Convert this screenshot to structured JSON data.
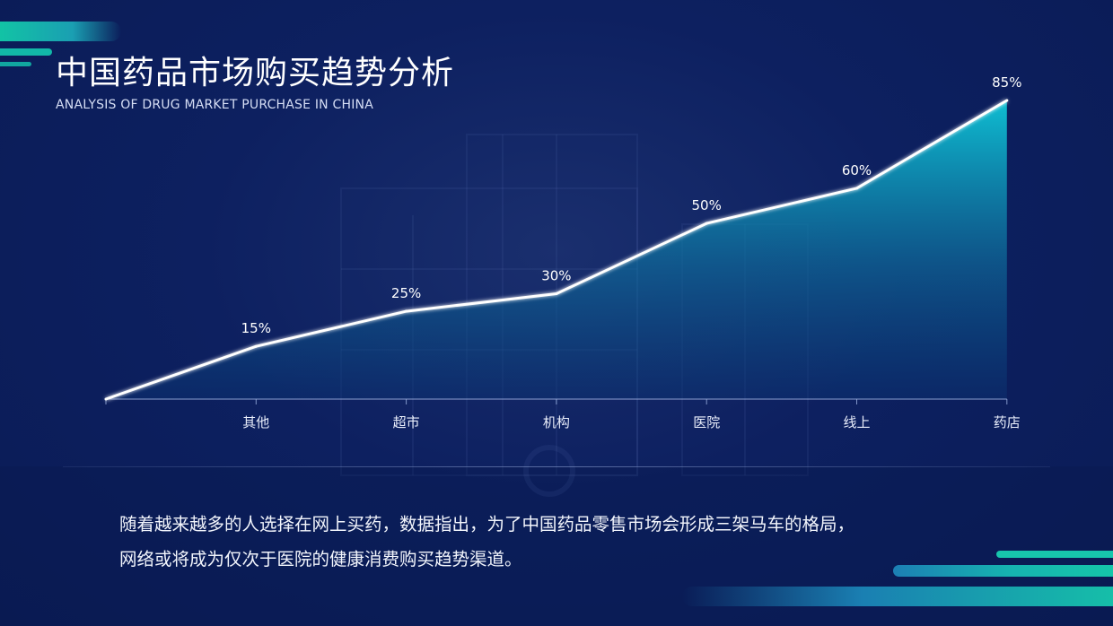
{
  "header": {
    "title": "中国药品市场购买趋势分析",
    "subtitle": "ANALYSIS OF DRUG MARKET PURCHASE IN CHINA"
  },
  "description": {
    "line1": "随着越来越多的人选择在网上买药，数据指出，为了中国药品零售市场会形成三架马车的格局，",
    "line2": "网络或将成为仅次于医院的健康消费购买趋势渠道。"
  },
  "colors": {
    "background": "#0a1b55",
    "accent_teal": "#12c3a5",
    "area_top": "#0fc6d8",
    "area_bottom": "#0b3372",
    "line": "#ffffff"
  },
  "chart_data": {
    "type": "area",
    "title": "",
    "xlabel": "",
    "ylabel": "",
    "categories": [
      "",
      "其他",
      "超市",
      "机构",
      "医院",
      "线上",
      "药店"
    ],
    "values": [
      0,
      15,
      25,
      30,
      50,
      60,
      85
    ],
    "labels": [
      "",
      "15%",
      "25%",
      "30%",
      "50%",
      "60%",
      "85%"
    ],
    "ylim": [
      0,
      85
    ],
    "unit": "%",
    "grid": false,
    "legend": "none"
  }
}
